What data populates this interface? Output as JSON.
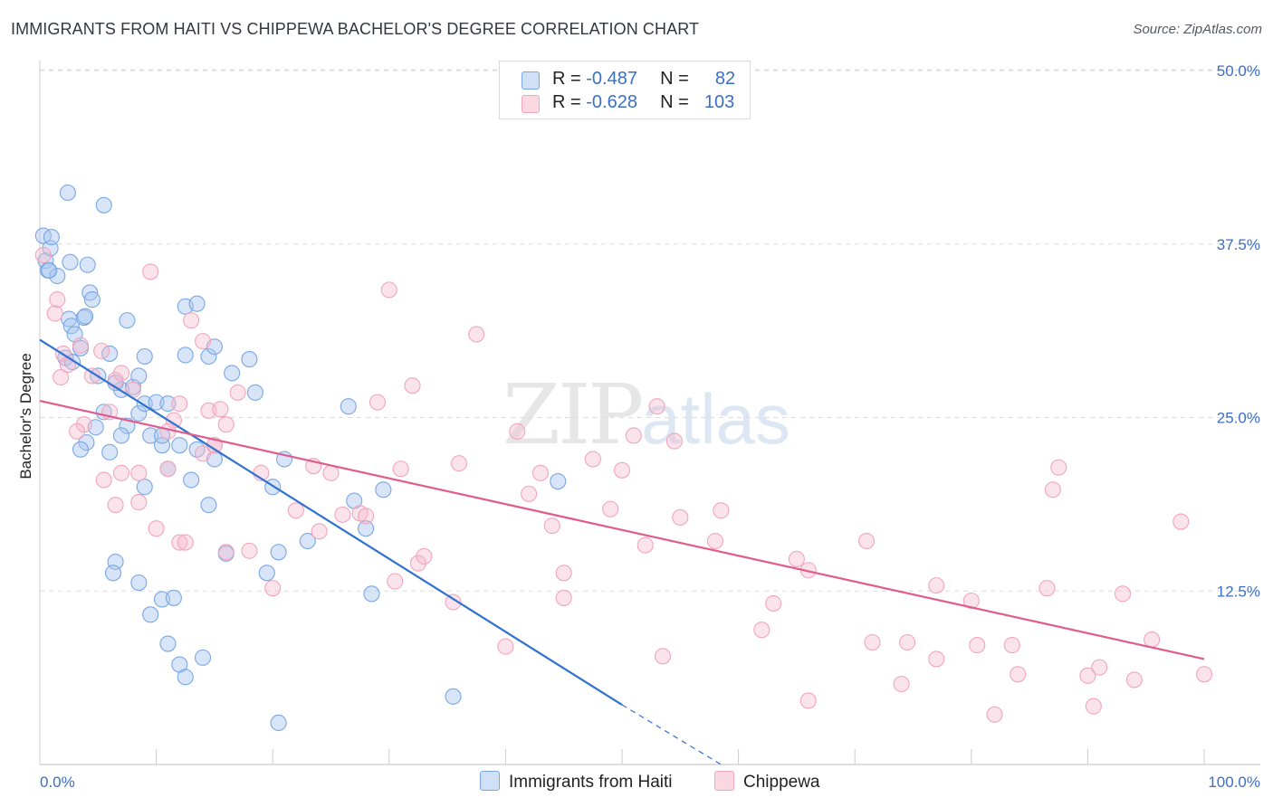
{
  "header": {
    "title": "IMMIGRANTS FROM HAITI VS CHIPPEWA BACHELOR'S DEGREE CORRELATION CHART",
    "source": "Source: ZipAtlas.com"
  },
  "watermark": {
    "zip": "ZIP",
    "atlas": "atlas"
  },
  "legend": {
    "rows": [
      {
        "r_label": "R =",
        "r_value": "-0.487",
        "n_label": "N =",
        "n_value": "82",
        "color": "#a9c6ef"
      },
      {
        "r_label": "R =",
        "r_value": "-0.628",
        "n_label": "N =",
        "n_value": "103",
        "color": "#f6b9cc"
      }
    ]
  },
  "bottom_legend": {
    "items": [
      {
        "label": "Immigrants from Haiti",
        "color": "#a9c6ef"
      },
      {
        "label": "Chippewa",
        "color": "#f6b9cc"
      }
    ]
  },
  "chart_data": {
    "type": "scatter",
    "title": "IMMIGRANTS FROM HAITI VS CHIPPEWA BACHELOR'S DEGREE CORRELATION CHART",
    "xlabel": "",
    "ylabel": "Bachelor's Degree",
    "xlim": [
      0,
      100
    ],
    "ylim": [
      0,
      50
    ],
    "x_tick_labels": [
      "0.0%",
      "100.0%"
    ],
    "y_ticks": [
      12.5,
      25.0,
      37.5,
      50.0
    ],
    "y_tick_labels": [
      "12.5%",
      "25.0%",
      "37.5%",
      "50.0%"
    ],
    "grid": true,
    "series": [
      {
        "name": "Immigrants from Haiti",
        "color": "#7aa7e3",
        "line_color": "#2f72d0",
        "trend": {
          "x": [
            0,
            50
          ],
          "y": [
            30.6,
            4.3
          ],
          "dashed_to": [
            58.5,
            0
          ]
        },
        "points": [
          [
            0.3,
            38.1
          ],
          [
            0.5,
            36.3
          ],
          [
            0.7,
            35.6
          ],
          [
            0.9,
            37.2
          ],
          [
            1.0,
            38.0
          ],
          [
            1.5,
            35.2
          ],
          [
            2.5,
            32.1
          ],
          [
            2.7,
            31.6
          ],
          [
            2.4,
            41.2
          ],
          [
            2.6,
            36.2
          ],
          [
            4.1,
            36.0
          ],
          [
            5.5,
            40.3
          ],
          [
            4.3,
            34.0
          ],
          [
            4.5,
            33.5
          ],
          [
            3.8,
            32.2
          ],
          [
            3.9,
            32.3
          ],
          [
            3.0,
            31.0
          ],
          [
            3.5,
            30.0
          ],
          [
            2.2,
            29.3
          ],
          [
            2.8,
            29.0
          ],
          [
            5.0,
            28.0
          ],
          [
            6.0,
            29.6
          ],
          [
            7.0,
            27.0
          ],
          [
            8.0,
            27.2
          ],
          [
            8.5,
            25.3
          ],
          [
            7.5,
            24.4
          ],
          [
            9.0,
            26.0
          ],
          [
            10.0,
            26.1
          ],
          [
            11.0,
            26.0
          ],
          [
            7.0,
            23.7
          ],
          [
            9.5,
            23.7
          ],
          [
            10.5,
            23.0
          ],
          [
            6.0,
            22.5
          ],
          [
            9.0,
            20.0
          ],
          [
            11.0,
            21.3
          ],
          [
            12.0,
            23.0
          ],
          [
            13.5,
            22.7
          ],
          [
            15.0,
            22.0
          ],
          [
            14.5,
            29.4
          ],
          [
            12.5,
            29.5
          ],
          [
            12.5,
            33.0
          ],
          [
            13.5,
            33.2
          ],
          [
            15.0,
            30.1
          ],
          [
            16.5,
            28.2
          ],
          [
            18.0,
            29.2
          ],
          [
            18.5,
            26.8
          ],
          [
            20.0,
            20.0
          ],
          [
            21.0,
            22.0
          ],
          [
            26.5,
            25.8
          ],
          [
            20.5,
            15.3
          ],
          [
            16.0,
            15.2
          ],
          [
            14.5,
            18.7
          ],
          [
            13.0,
            20.5
          ],
          [
            10.5,
            23.7
          ],
          [
            8.5,
            28.0
          ],
          [
            9.0,
            29.4
          ],
          [
            7.5,
            32.0
          ],
          [
            6.5,
            27.5
          ],
          [
            5.5,
            25.4
          ],
          [
            4.8,
            24.3
          ],
          [
            4.0,
            23.2
          ],
          [
            3.5,
            22.7
          ],
          [
            6.5,
            14.6
          ],
          [
            6.3,
            13.8
          ],
          [
            8.5,
            13.1
          ],
          [
            9.5,
            10.8
          ],
          [
            10.5,
            11.9
          ],
          [
            11.5,
            12.0
          ],
          [
            11.0,
            8.7
          ],
          [
            12.0,
            7.2
          ],
          [
            12.5,
            6.3
          ],
          [
            14.0,
            7.7
          ],
          [
            20.5,
            3.0
          ],
          [
            19.5,
            13.8
          ],
          [
            23.0,
            16.1
          ],
          [
            27.0,
            19.0
          ],
          [
            28.0,
            17.0
          ],
          [
            28.5,
            12.3
          ],
          [
            29.5,
            19.8
          ],
          [
            35.5,
            4.9
          ],
          [
            44.5,
            20.4
          ],
          [
            0.8,
            35.6
          ]
        ]
      },
      {
        "name": "Chippewa",
        "color": "#f2a5bd",
        "line_color": "#e05c8d",
        "trend": {
          "x": [
            0,
            100
          ],
          "y": [
            26.2,
            7.6
          ]
        },
        "points": [
          [
            0.3,
            36.7
          ],
          [
            1.3,
            32.5
          ],
          [
            1.5,
            33.5
          ],
          [
            2.0,
            29.6
          ],
          [
            3.5,
            30.2
          ],
          [
            2.4,
            28.8
          ],
          [
            1.8,
            27.9
          ],
          [
            4.5,
            28.0
          ],
          [
            3.8,
            24.5
          ],
          [
            3.2,
            24.0
          ],
          [
            5.3,
            29.8
          ],
          [
            6.5,
            27.7
          ],
          [
            7.0,
            28.2
          ],
          [
            8.0,
            27.0
          ],
          [
            9.5,
            35.5
          ],
          [
            11.5,
            24.8
          ],
          [
            11.0,
            24.0
          ],
          [
            12.0,
            26.0
          ],
          [
            13.0,
            32.0
          ],
          [
            14.0,
            30.5
          ],
          [
            14.5,
            25.5
          ],
          [
            15.0,
            23.0
          ],
          [
            15.5,
            25.6
          ],
          [
            16.0,
            24.5
          ],
          [
            17.0,
            26.8
          ],
          [
            6.0,
            25.4
          ],
          [
            5.5,
            20.5
          ],
          [
            7.0,
            21.0
          ],
          [
            8.5,
            21.0
          ],
          [
            8.5,
            18.9
          ],
          [
            6.5,
            18.7
          ],
          [
            10.0,
            17.0
          ],
          [
            11.0,
            21.3
          ],
          [
            12.0,
            16.0
          ],
          [
            12.5,
            16.0
          ],
          [
            14.0,
            22.4
          ],
          [
            15.0,
            23.0
          ],
          [
            16.0,
            15.3
          ],
          [
            18.0,
            15.4
          ],
          [
            19.0,
            21.0
          ],
          [
            20.0,
            12.7
          ],
          [
            22.0,
            18.3
          ],
          [
            23.5,
            21.5
          ],
          [
            24.0,
            16.8
          ],
          [
            25.0,
            21.0
          ],
          [
            26.0,
            18.0
          ],
          [
            27.5,
            18.1
          ],
          [
            28.0,
            17.9
          ],
          [
            29.0,
            26.1
          ],
          [
            30.0,
            34.2
          ],
          [
            31.0,
            21.3
          ],
          [
            32.0,
            27.3
          ],
          [
            32.5,
            14.5
          ],
          [
            33.0,
            15.0
          ],
          [
            30.5,
            13.2
          ],
          [
            35.5,
            11.7
          ],
          [
            36.0,
            21.7
          ],
          [
            37.5,
            31.0
          ],
          [
            40.0,
            8.5
          ],
          [
            41.0,
            24.0
          ],
          [
            42.0,
            19.5
          ],
          [
            43.0,
            21.0
          ],
          [
            44.0,
            17.2
          ],
          [
            45.0,
            13.8
          ],
          [
            45.0,
            12.0
          ],
          [
            47.5,
            22.0
          ],
          [
            49.0,
            18.4
          ],
          [
            50.0,
            21.2
          ],
          [
            51.0,
            23.7
          ],
          [
            52.0,
            15.8
          ],
          [
            53.0,
            25.8
          ],
          [
            54.5,
            23.3
          ],
          [
            55.0,
            17.8
          ],
          [
            53.5,
            7.8
          ],
          [
            58.5,
            18.3
          ],
          [
            58.0,
            16.1
          ],
          [
            62.0,
            9.7
          ],
          [
            63.0,
            11.6
          ],
          [
            65.0,
            14.8
          ],
          [
            66.0,
            14.0
          ],
          [
            66.0,
            4.6
          ],
          [
            71.0,
            16.1
          ],
          [
            71.5,
            8.8
          ],
          [
            74.0,
            5.8
          ],
          [
            74.5,
            8.8
          ],
          [
            77.0,
            7.6
          ],
          [
            77.0,
            12.9
          ],
          [
            80.0,
            11.8
          ],
          [
            80.5,
            8.6
          ],
          [
            82.0,
            3.6
          ],
          [
            83.5,
            8.6
          ],
          [
            84.0,
            6.5
          ],
          [
            86.5,
            12.7
          ],
          [
            87.0,
            19.8
          ],
          [
            87.5,
            21.4
          ],
          [
            90.0,
            6.4
          ],
          [
            90.5,
            4.2
          ],
          [
            91.0,
            7.0
          ],
          [
            93.0,
            12.3
          ],
          [
            94.0,
            6.1
          ],
          [
            95.5,
            9.0
          ],
          [
            98.0,
            17.5
          ],
          [
            100.0,
            6.5
          ]
        ]
      }
    ]
  }
}
